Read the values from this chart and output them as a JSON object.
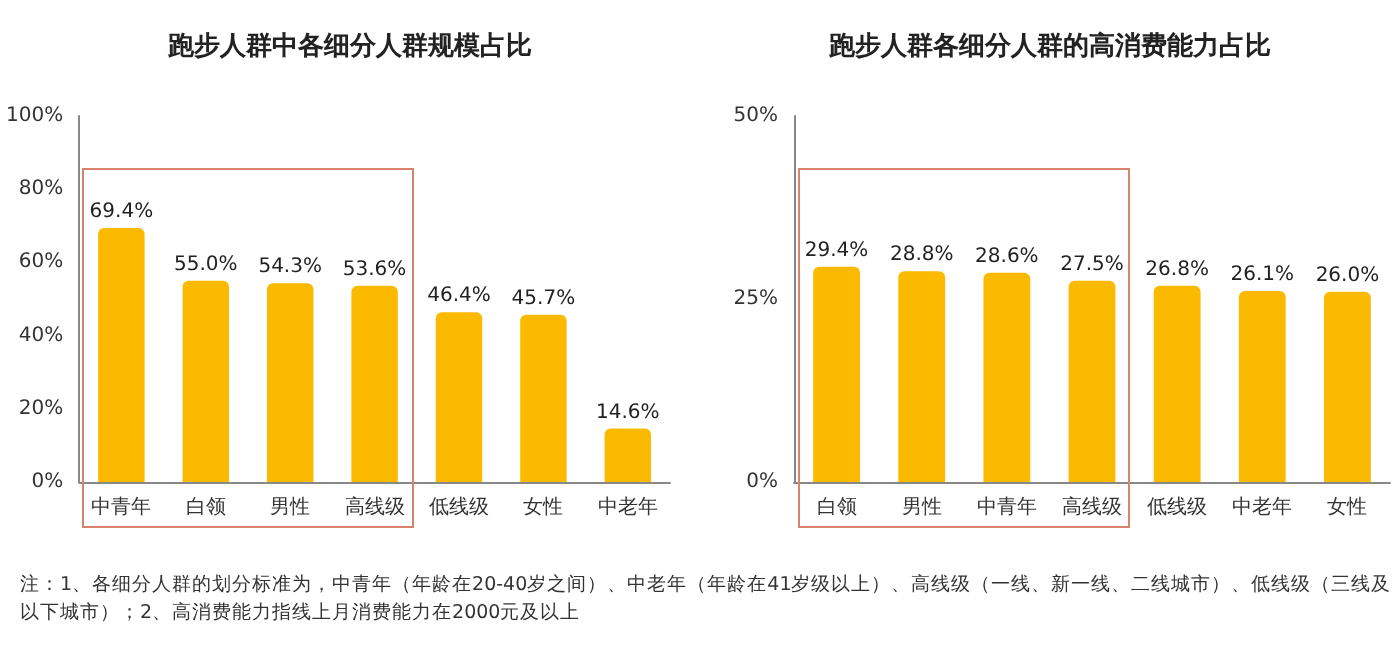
{
  "chart_data": [
    {
      "type": "bar",
      "title": "跑步人群中各细分人群规模占比",
      "categories": [
        "中青年",
        "白领",
        "男性",
        "高线级",
        "低线级",
        "女性",
        "中老年"
      ],
      "series": [
        {
          "color": "#fbb900",
          "values": [
            69.4,
            55.0,
            54.3,
            53.6,
            46.4,
            45.7,
            14.6
          ],
          "value_labels": [
            "69.4%",
            "55.0%",
            "54.3%",
            "53.6%",
            "46.4%",
            "45.7%",
            "14.6%"
          ]
        }
      ],
      "ylim": [
        0,
        100
      ],
      "yticks": [
        {
          "value": 0,
          "label": "0%"
        },
        {
          "value": 20,
          "label": "20%"
        },
        {
          "value": 40,
          "label": "40%"
        },
        {
          "value": 60,
          "label": "60%"
        },
        {
          "value": 80,
          "label": "80%"
        },
        {
          "value": 100,
          "label": "100%"
        }
      ],
      "grid": false,
      "annotations": [
        "注：1、各细分人群的划分标准为，中青年（年龄在20-40岁之间）、中老年（年龄在41岁级以上）、高线级（一线、新一线、二线城市）、低线级（三线及以下城市）；2、高消费能力指线上月消费能力在2000元及以上"
      ]
    },
    {
      "type": "bar",
      "title": "跑步人群各细分人群的高消费能力占比",
      "categories": [
        "白领",
        "男性",
        "中青年",
        "高线级",
        "低线级",
        "中老年",
        "女性"
      ],
      "series": [
        {
          "color": "#fbb900",
          "values": [
            29.4,
            28.8,
            28.6,
            27.5,
            26.8,
            26.1,
            26.0
          ],
          "value_labels": [
            "29.4%",
            "28.8%",
            "28.6%",
            "27.5%",
            "26.8%",
            "26.1%",
            "26.0%"
          ]
        }
      ],
      "ylim": [
        0,
        50
      ],
      "yticks": [
        {
          "value": 0,
          "label": "0%"
        },
        {
          "value": 25,
          "label": "25%"
        },
        {
          "value": 50,
          "label": "50%"
        }
      ],
      "grid": false
    }
  ]
}
